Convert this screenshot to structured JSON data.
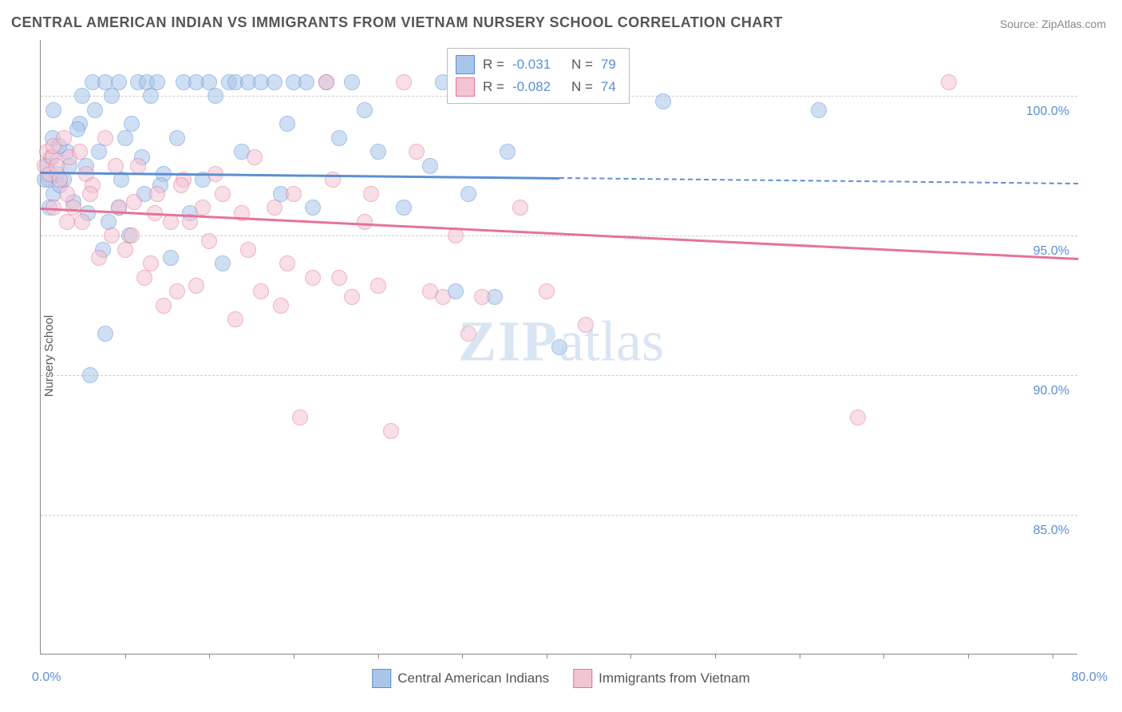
{
  "title": "CENTRAL AMERICAN INDIAN VS IMMIGRANTS FROM VIETNAM NURSERY SCHOOL CORRELATION CHART",
  "source": "Source: ZipAtlas.com",
  "y_label": "Nursery School",
  "watermark_bold": "ZIP",
  "watermark_rest": "atlas",
  "chart": {
    "type": "scatter",
    "background_color": "#ffffff",
    "grid_color": "#cccccc",
    "text_color": "#555555",
    "value_color": "#5b8fd6",
    "xlim": [
      0,
      80
    ],
    "ylim": [
      80,
      102
    ],
    "y_ticks": [
      85,
      90,
      95,
      100
    ],
    "y_tick_labels": [
      "85.0%",
      "90.0%",
      "95.0%",
      "100.0%"
    ],
    "x_left_label": "0.0%",
    "x_right_label": "80.0%",
    "x_minor_ticks": [
      6.5,
      13,
      19.5,
      26,
      32.5,
      39,
      45.5,
      52,
      58.5,
      65,
      71.5,
      78
    ],
    "marker_radius": 10,
    "marker_opacity": 0.55,
    "series": [
      {
        "name": "Central American Indians",
        "color_fill": "#a9c6ea",
        "color_stroke": "#5b8fd6",
        "r": "-0.031",
        "n": "79",
        "trend": {
          "x1": 0,
          "y1": 97.3,
          "x2": 80,
          "y2": 96.9,
          "solid_until_x": 40,
          "width": 2.5
        },
        "points": [
          [
            0.5,
            97.5
          ],
          [
            0.6,
            97.0
          ],
          [
            0.8,
            97.8
          ],
          [
            1.0,
            96.5
          ],
          [
            1.2,
            97.2
          ],
          [
            1.5,
            96.8
          ],
          [
            0.7,
            96.0
          ],
          [
            0.9,
            98.5
          ],
          [
            1.8,
            97.0
          ],
          [
            2.0,
            98.0
          ],
          [
            2.2,
            97.5
          ],
          [
            2.5,
            96.2
          ],
          [
            3.0,
            99.0
          ],
          [
            3.2,
            100.0
          ],
          [
            3.5,
            97.5
          ],
          [
            4.0,
            100.5
          ],
          [
            4.2,
            99.5
          ],
          [
            4.5,
            98.0
          ],
          [
            5.0,
            100.5
          ],
          [
            5.2,
            95.5
          ],
          [
            5.5,
            100.0
          ],
          [
            6.0,
            100.5
          ],
          [
            6.2,
            97.0
          ],
          [
            6.5,
            98.5
          ],
          [
            6.8,
            95.0
          ],
          [
            7.0,
            99.0
          ],
          [
            7.5,
            100.5
          ],
          [
            8.0,
            96.5
          ],
          [
            8.2,
            100.5
          ],
          [
            8.5,
            100.0
          ],
          [
            9.0,
            100.5
          ],
          [
            9.5,
            97.2
          ],
          [
            10.0,
            94.2
          ],
          [
            10.5,
            98.5
          ],
          [
            11.0,
            100.5
          ],
          [
            11.5,
            95.8
          ],
          [
            12.0,
            100.5
          ],
          [
            12.5,
            97.0
          ],
          [
            13.0,
            100.5
          ],
          [
            13.5,
            100.0
          ],
          [
            14.0,
            94.0
          ],
          [
            14.5,
            100.5
          ],
          [
            15.0,
            100.5
          ],
          [
            15.5,
            98.0
          ],
          [
            16.0,
            100.5
          ],
          [
            17.0,
            100.5
          ],
          [
            18.0,
            100.5
          ],
          [
            18.5,
            96.5
          ],
          [
            19.0,
            99.0
          ],
          [
            19.5,
            100.5
          ],
          [
            20.5,
            100.5
          ],
          [
            21.0,
            96.0
          ],
          [
            22.0,
            100.5
          ],
          [
            23.0,
            98.5
          ],
          [
            24.0,
            100.5
          ],
          [
            25.0,
            99.5
          ],
          [
            26.0,
            98.0
          ],
          [
            28.0,
            96.0
          ],
          [
            30.0,
            97.5
          ],
          [
            31.0,
            100.5
          ],
          [
            32.0,
            93.0
          ],
          [
            33.0,
            96.5
          ],
          [
            35.0,
            92.8
          ],
          [
            36.0,
            98.0
          ],
          [
            38.0,
            100.5
          ],
          [
            40.0,
            91.0
          ],
          [
            3.8,
            90.0
          ],
          [
            5.0,
            91.5
          ],
          [
            48.0,
            99.8
          ],
          [
            60.0,
            99.5
          ],
          [
            1.0,
            99.5
          ],
          [
            2.8,
            98.8
          ],
          [
            6.0,
            96.0
          ],
          [
            4.8,
            94.5
          ],
          [
            0.3,
            97.0
          ],
          [
            1.4,
            98.2
          ],
          [
            3.6,
            95.8
          ],
          [
            7.8,
            97.8
          ],
          [
            9.2,
            96.8
          ]
        ]
      },
      {
        "name": "Immigrants from Vietnam",
        "color_fill": "#f3c4d2",
        "color_stroke": "#e57399",
        "r": "-0.082",
        "n": "74",
        "trend": {
          "x1": 0,
          "y1": 96.0,
          "x2": 80,
          "y2": 94.2,
          "solid_until_x": 80,
          "width": 2.5
        },
        "points": [
          [
            0.3,
            97.5
          ],
          [
            0.5,
            98.0
          ],
          [
            0.7,
            97.2
          ],
          [
            0.9,
            97.8
          ],
          [
            1.0,
            98.2
          ],
          [
            1.2,
            97.5
          ],
          [
            1.5,
            97.0
          ],
          [
            1.8,
            98.5
          ],
          [
            2.0,
            96.5
          ],
          [
            2.2,
            97.8
          ],
          [
            2.5,
            96.0
          ],
          [
            3.0,
            98.0
          ],
          [
            3.2,
            95.5
          ],
          [
            3.5,
            97.2
          ],
          [
            4.0,
            96.8
          ],
          [
            4.5,
            94.2
          ],
          [
            5.0,
            98.5
          ],
          [
            5.5,
            95.0
          ],
          [
            6.0,
            96.0
          ],
          [
            6.5,
            94.5
          ],
          [
            7.0,
            95.0
          ],
          [
            7.5,
            97.5
          ],
          [
            8.0,
            93.5
          ],
          [
            8.5,
            94.0
          ],
          [
            9.0,
            96.5
          ],
          [
            9.5,
            92.5
          ],
          [
            10.0,
            95.5
          ],
          [
            10.5,
            93.0
          ],
          [
            11.0,
            97.0
          ],
          [
            11.5,
            95.5
          ],
          [
            12.0,
            93.2
          ],
          [
            12.5,
            96.0
          ],
          [
            13.0,
            94.8
          ],
          [
            14.0,
            96.5
          ],
          [
            15.0,
            92.0
          ],
          [
            15.5,
            95.8
          ],
          [
            16.0,
            94.5
          ],
          [
            17.0,
            93.0
          ],
          [
            18.0,
            96.0
          ],
          [
            18.5,
            92.5
          ],
          [
            19.0,
            94.0
          ],
          [
            20.0,
            88.5
          ],
          [
            21.0,
            93.5
          ],
          [
            22.0,
            100.5
          ],
          [
            23.0,
            93.5
          ],
          [
            24.0,
            92.8
          ],
          [
            25.0,
            95.5
          ],
          [
            26.0,
            93.2
          ],
          [
            27.0,
            88.0
          ],
          [
            28.0,
            100.5
          ],
          [
            29.0,
            98.0
          ],
          [
            30.0,
            93.0
          ],
          [
            31.0,
            92.8
          ],
          [
            32.0,
            95.0
          ],
          [
            33.0,
            91.5
          ],
          [
            34.0,
            92.8
          ],
          [
            35.0,
            100.5
          ],
          [
            37.0,
            96.0
          ],
          [
            39.0,
            93.0
          ],
          [
            42.0,
            91.8
          ],
          [
            70.0,
            100.5
          ],
          [
            63.0,
            88.5
          ],
          [
            1.0,
            96.0
          ],
          [
            2.0,
            95.5
          ],
          [
            3.8,
            96.5
          ],
          [
            5.8,
            97.5
          ],
          [
            7.2,
            96.2
          ],
          [
            8.8,
            95.8
          ],
          [
            10.8,
            96.8
          ],
          [
            13.5,
            97.2
          ],
          [
            16.5,
            97.8
          ],
          [
            19.5,
            96.5
          ],
          [
            22.5,
            97.0
          ],
          [
            25.5,
            96.5
          ]
        ]
      }
    ]
  },
  "stats_box": {
    "r_label": "R =",
    "n_label": "N ="
  },
  "legend": {
    "series1": "Central American Indians",
    "series2": "Immigrants from Vietnam"
  }
}
